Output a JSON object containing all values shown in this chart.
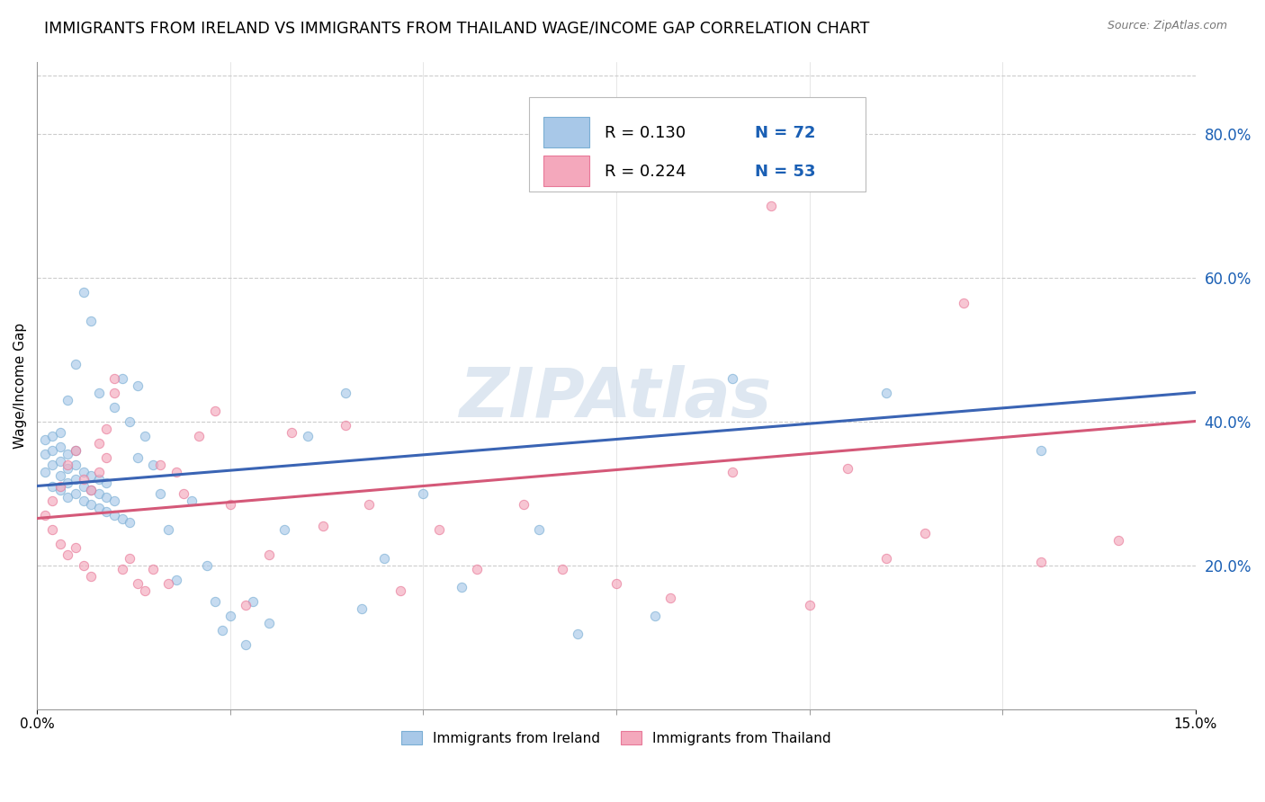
{
  "title": "IMMIGRANTS FROM IRELAND VS IMMIGRANTS FROM THAILAND WAGE/INCOME GAP CORRELATION CHART",
  "source": "Source: ZipAtlas.com",
  "ylabel": "Wage/Income Gap",
  "ylabel_right_values": [
    0.2,
    0.4,
    0.6,
    0.8
  ],
  "legend1_r": "0.130",
  "legend1_n": "72",
  "legend2_r": "0.224",
  "legend2_n": "53",
  "ireland_color": "#a8c8e8",
  "thailand_color": "#f4a8bc",
  "ireland_edge_color": "#7aaed4",
  "thailand_edge_color": "#e87898",
  "ireland_line_color": "#3a64b4",
  "thailand_line_color": "#d45878",
  "ireland_scatter_x": [
    0.001,
    0.001,
    0.001,
    0.002,
    0.002,
    0.002,
    0.002,
    0.003,
    0.003,
    0.003,
    0.003,
    0.003,
    0.004,
    0.004,
    0.004,
    0.004,
    0.004,
    0.005,
    0.005,
    0.005,
    0.005,
    0.005,
    0.006,
    0.006,
    0.006,
    0.006,
    0.007,
    0.007,
    0.007,
    0.007,
    0.008,
    0.008,
    0.008,
    0.008,
    0.009,
    0.009,
    0.009,
    0.01,
    0.01,
    0.01,
    0.011,
    0.011,
    0.012,
    0.012,
    0.013,
    0.013,
    0.014,
    0.015,
    0.016,
    0.017,
    0.018,
    0.02,
    0.022,
    0.023,
    0.024,
    0.025,
    0.027,
    0.028,
    0.03,
    0.032,
    0.035,
    0.04,
    0.042,
    0.045,
    0.05,
    0.055,
    0.065,
    0.07,
    0.08,
    0.09,
    0.11,
    0.13
  ],
  "ireland_scatter_y": [
    0.33,
    0.355,
    0.375,
    0.31,
    0.34,
    0.36,
    0.38,
    0.305,
    0.325,
    0.345,
    0.365,
    0.385,
    0.295,
    0.315,
    0.335,
    0.355,
    0.43,
    0.3,
    0.32,
    0.34,
    0.36,
    0.48,
    0.29,
    0.31,
    0.33,
    0.58,
    0.285,
    0.305,
    0.325,
    0.54,
    0.28,
    0.3,
    0.32,
    0.44,
    0.275,
    0.295,
    0.315,
    0.27,
    0.29,
    0.42,
    0.265,
    0.46,
    0.26,
    0.4,
    0.35,
    0.45,
    0.38,
    0.34,
    0.3,
    0.25,
    0.18,
    0.29,
    0.2,
    0.15,
    0.11,
    0.13,
    0.09,
    0.15,
    0.12,
    0.25,
    0.38,
    0.44,
    0.14,
    0.21,
    0.3,
    0.17,
    0.25,
    0.105,
    0.13,
    0.46,
    0.44,
    0.36
  ],
  "thailand_scatter_x": [
    0.001,
    0.002,
    0.002,
    0.003,
    0.003,
    0.004,
    0.004,
    0.005,
    0.005,
    0.006,
    0.006,
    0.007,
    0.007,
    0.008,
    0.008,
    0.009,
    0.009,
    0.01,
    0.01,
    0.011,
    0.012,
    0.013,
    0.014,
    0.015,
    0.016,
    0.017,
    0.018,
    0.019,
    0.021,
    0.023,
    0.025,
    0.027,
    0.03,
    0.033,
    0.037,
    0.04,
    0.043,
    0.047,
    0.052,
    0.057,
    0.063,
    0.068,
    0.075,
    0.082,
    0.09,
    0.1,
    0.11,
    0.12,
    0.13,
    0.14,
    0.095,
    0.105,
    0.115
  ],
  "thailand_scatter_y": [
    0.27,
    0.25,
    0.29,
    0.23,
    0.31,
    0.215,
    0.34,
    0.225,
    0.36,
    0.2,
    0.32,
    0.185,
    0.305,
    0.37,
    0.33,
    0.35,
    0.39,
    0.44,
    0.46,
    0.195,
    0.21,
    0.175,
    0.165,
    0.195,
    0.34,
    0.175,
    0.33,
    0.3,
    0.38,
    0.415,
    0.285,
    0.145,
    0.215,
    0.385,
    0.255,
    0.395,
    0.285,
    0.165,
    0.25,
    0.195,
    0.285,
    0.195,
    0.175,
    0.155,
    0.33,
    0.145,
    0.21,
    0.565,
    0.205,
    0.235,
    0.7,
    0.335,
    0.245
  ],
  "ireland_trend_x": [
    0.0,
    0.15
  ],
  "ireland_trend_y": [
    0.31,
    0.44
  ],
  "thailand_trend_x": [
    0.0,
    0.15
  ],
  "thailand_trend_y": [
    0.265,
    0.4
  ],
  "xlim": [
    0.0,
    0.15
  ],
  "ylim": [
    0.0,
    0.9
  ],
  "background_color": "#ffffff",
  "grid_color": "#cccccc",
  "title_fontsize": 12.5,
  "scatter_size": 55,
  "scatter_alpha": 0.65,
  "legend_color": "#1a5fb4",
  "watermark": "ZIPAtlas"
}
